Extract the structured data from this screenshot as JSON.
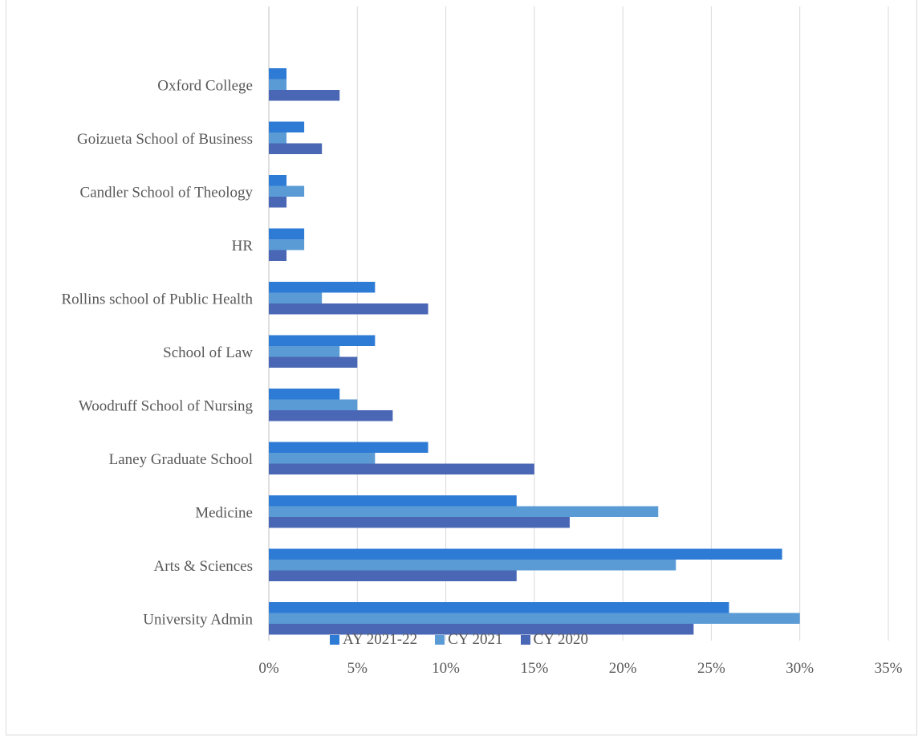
{
  "chart_data": {
    "type": "bar",
    "orientation": "horizontal",
    "categories": [
      "University Admin",
      "Arts & Sciences",
      "Medicine",
      "Laney Graduate School",
      "Woodruff School of Nursing",
      "School of Law",
      "Rollins school of Public Health",
      "HR",
      "Candler School of Theology",
      "Goizueta School of Business",
      "Oxford College"
    ],
    "series": [
      {
        "name": "AY 2021-22",
        "color": "#2E7BD6",
        "values": [
          26,
          29,
          14,
          9,
          4,
          6,
          6,
          2,
          1,
          2,
          1
        ]
      },
      {
        "name": "CY 2021",
        "color": "#5B9BD5",
        "values": [
          30,
          23,
          22,
          6,
          5,
          4,
          3,
          2,
          2,
          1,
          1
        ]
      },
      {
        "name": "CY 2020",
        "color": "#4A67B5",
        "values": [
          24,
          14,
          17,
          15,
          7,
          5,
          9,
          1,
          1,
          3,
          4
        ]
      }
    ],
    "x_ticks": [
      "0%",
      "5%",
      "10%",
      "15%",
      "20%",
      "25%",
      "30%",
      "35%"
    ],
    "xlim": [
      0,
      35
    ],
    "unit": "%",
    "grid": "vertical",
    "legend_position": "bottom"
  }
}
